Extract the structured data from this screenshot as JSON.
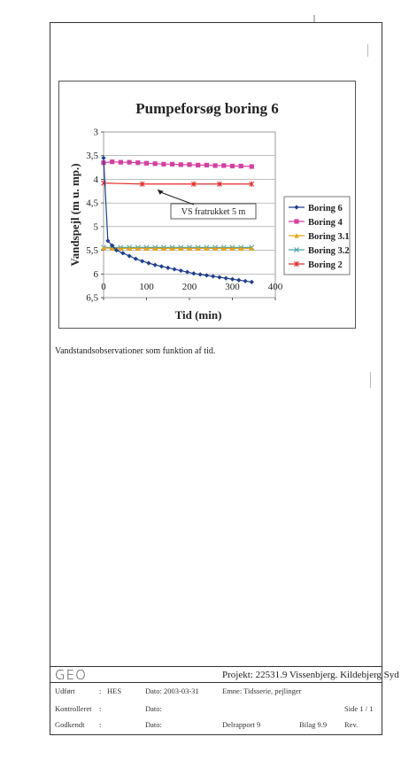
{
  "chart_data": {
    "type": "line",
    "title": "Pumpeforsøg boring 6",
    "xlabel": "Tid (min)",
    "ylabel": "Vandspejl (m u. mp.)",
    "xlim": [
      0,
      400
    ],
    "ylim": [
      3,
      6.5
    ],
    "y_inverted": true,
    "xticks": [
      "0",
      "100",
      "200",
      "300",
      "400"
    ],
    "yticks": [
      "3",
      "3,5",
      "4",
      "4,5",
      "5",
      "5,5",
      "6",
      "6,5"
    ],
    "grid": "horizontal",
    "legend_position": "right",
    "series": [
      {
        "name": "Boring 6",
        "color": "#1f3f8f",
        "marker": "diamond",
        "x": [
          0,
          10,
          20,
          30,
          45,
          60,
          75,
          90,
          105,
          120,
          135,
          150,
          165,
          180,
          195,
          210,
          225,
          240,
          255,
          270,
          285,
          300,
          315,
          330,
          345
        ],
        "y": [
          3.55,
          5.3,
          5.4,
          5.5,
          5.56,
          5.62,
          5.68,
          5.73,
          5.77,
          5.81,
          5.84,
          5.87,
          5.9,
          5.93,
          5.96,
          5.99,
          6.01,
          6.03,
          6.05,
          6.07,
          6.09,
          6.11,
          6.13,
          6.15,
          6.17
        ]
      },
      {
        "name": "Boring 4",
        "color": "#d63fa0",
        "marker": "square",
        "x": [
          0,
          20,
          40,
          60,
          80,
          100,
          120,
          140,
          160,
          180,
          200,
          220,
          240,
          260,
          280,
          300,
          320,
          345
        ],
        "y": [
          3.65,
          3.63,
          3.64,
          3.64,
          3.65,
          3.66,
          3.67,
          3.68,
          3.68,
          3.69,
          3.69,
          3.7,
          3.7,
          3.71,
          3.71,
          3.72,
          3.72,
          3.73
        ]
      },
      {
        "name": "Boring 3.1",
        "color": "#e8a317",
        "marker": "triangle",
        "x": [
          0,
          20,
          40,
          60,
          80,
          100,
          120,
          140,
          160,
          180,
          200,
          220,
          240,
          260,
          280,
          300,
          320,
          345
        ],
        "y": [
          5.45,
          5.46,
          5.46,
          5.46,
          5.46,
          5.46,
          5.46,
          5.46,
          5.46,
          5.46,
          5.46,
          5.46,
          5.46,
          5.46,
          5.46,
          5.46,
          5.46,
          5.46
        ]
      },
      {
        "name": "Boring 3.2",
        "color": "#4aa0a0",
        "marker": "x",
        "x": [
          0,
          20,
          40,
          60,
          80,
          100,
          120,
          140,
          160,
          180,
          200,
          220,
          240,
          260,
          280,
          300,
          320,
          345
        ],
        "y": [
          5.44,
          5.44,
          5.44,
          5.44,
          5.44,
          5.44,
          5.44,
          5.44,
          5.44,
          5.44,
          5.44,
          5.44,
          5.44,
          5.44,
          5.44,
          5.44,
          5.44,
          5.44
        ]
      },
      {
        "name": "Boring 2",
        "color": "#e02a2a",
        "marker": "star",
        "x": [
          0,
          90,
          210,
          270,
          345
        ],
        "y": [
          4.08,
          4.1,
          4.1,
          4.1,
          4.1
        ]
      }
    ],
    "annotation": {
      "text": "VS fratrukket 5 m",
      "arrow_to_x": 125,
      "arrow_to_y": 4.1
    }
  },
  "caption": "Vandstandsobservationer som funktion af tid.",
  "footer": {
    "logo": "GEO",
    "project": "Projekt: 22531.9 Vissenbjerg. Kildebjerg Syd",
    "udfort_label": "Udført",
    "udfort_sep": ":",
    "udfort_value": "HES",
    "date1": "Dato: 2003-03-31",
    "emne": "Emne: Tidsserie, pejlinger",
    "kontrolleret_label": "Kontrolleret",
    "kontrolleret_sep": ":",
    "date2": "Dato:",
    "side": "Side 1 / 1",
    "godkendt_label": "Godkendt",
    "godkendt_sep": ":",
    "date3": "Dato:",
    "delrapport": "Delrapport 9",
    "bilag": "Bilag 9.9",
    "rev": "Rev."
  }
}
